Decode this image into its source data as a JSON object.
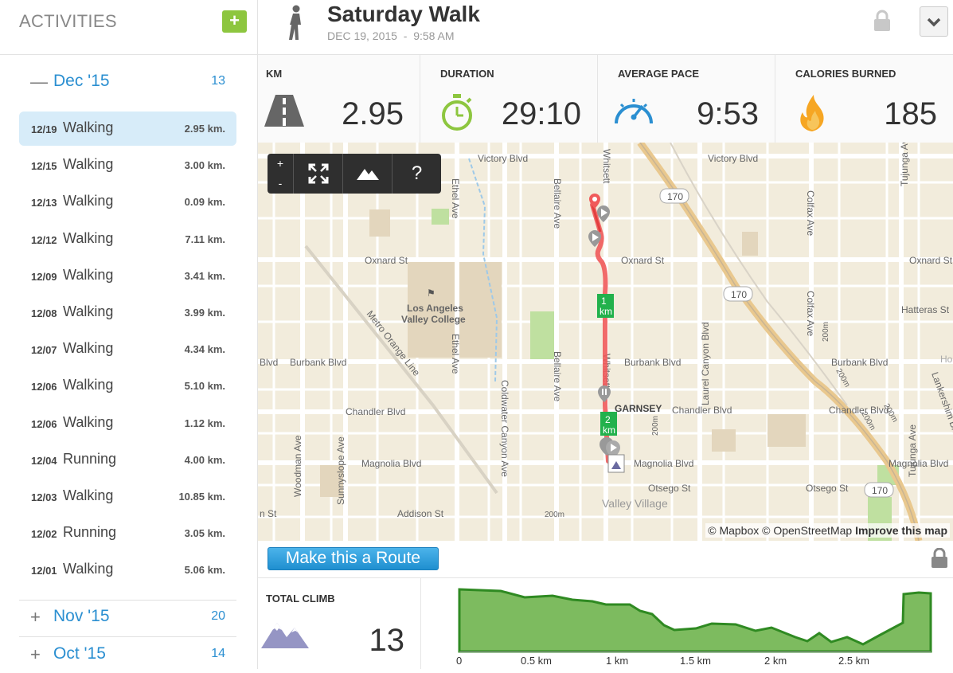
{
  "sidebar": {
    "title": "ACTIVITIES",
    "add_label": "+",
    "current_month": {
      "sign": "—",
      "name": "Dec '15",
      "count": "13"
    },
    "activities": [
      {
        "date": "12/19",
        "type": "Walking",
        "dist": "2.95 km."
      },
      {
        "date": "12/15",
        "type": "Walking",
        "dist": "3.00 km."
      },
      {
        "date": "12/13",
        "type": "Walking",
        "dist": "0.09 km."
      },
      {
        "date": "12/12",
        "type": "Walking",
        "dist": "7.11 km."
      },
      {
        "date": "12/09",
        "type": "Walking",
        "dist": "3.41 km."
      },
      {
        "date": "12/08",
        "type": "Walking",
        "dist": "3.99 km."
      },
      {
        "date": "12/07",
        "type": "Walking",
        "dist": "4.34 km."
      },
      {
        "date": "12/06",
        "type": "Walking",
        "dist": "5.10 km."
      },
      {
        "date": "12/06",
        "type": "Walking",
        "dist": "1.12 km."
      },
      {
        "date": "12/04",
        "type": "Running",
        "dist": "4.00 km."
      },
      {
        "date": "12/03",
        "type": "Walking",
        "dist": "10.85 km."
      },
      {
        "date": "12/02",
        "type": "Running",
        "dist": "3.05 km."
      },
      {
        "date": "12/01",
        "type": "Walking",
        "dist": "5.06 km."
      }
    ],
    "other_months": [
      {
        "sign": "+",
        "name": "Nov '15",
        "count": "20"
      },
      {
        "sign": "+",
        "name": "Oct '15",
        "count": "14"
      }
    ]
  },
  "header": {
    "title": "Saturday Walk",
    "date": "DEC 19, 2015",
    "separator": "-",
    "time": "9:58 AM",
    "activity_icon": "walking-person-icon"
  },
  "stats": {
    "km": {
      "label": "KM",
      "value": "2.95",
      "icon": "road-icon"
    },
    "duration": {
      "label": "DURATION",
      "value": "29:10",
      "icon": "stopwatch-icon"
    },
    "pace": {
      "label": "AVERAGE PACE",
      "value": "9:53",
      "icon": "speedometer-icon"
    },
    "calories": {
      "label": "CALORIES BURNED",
      "value": "185",
      "icon": "flame-icon"
    }
  },
  "map": {
    "zoom_in": "+",
    "zoom_out": "-",
    "help": "?",
    "attribution_text": "© Mapbox © OpenStreetMap ",
    "attribution_link": "Improve this map",
    "labels": {
      "victory1": "Victory Blvd",
      "victory2": "Victory Blvd",
      "oxnard1": "Oxnard St",
      "oxnard2": "Oxnard St",
      "oxnard3": "Oxnard St",
      "burbank0": "Blvd",
      "burbank1": "Burbank Blvd",
      "burbank2": "Burbank Blvd",
      "burbank3": "Burbank Blvd",
      "chandler1": "Chandler Blvd",
      "chandler2": "Chandler Blvd",
      "chandler3": "Chandler Blvd",
      "magnolia1": "Magnolia Blvd",
      "magnolia2": "Magnolia Blvd",
      "magnolia3": "Magnolia Blvd",
      "otsego1": "Otsego St",
      "otsego2": "Otsego St",
      "addison": "Addison St",
      "nst": "n St",
      "lavc1": "Los Angeles",
      "lavc2": "Valley College",
      "garnsey": "GARNSEY",
      "valley_village": "Valley Village",
      "hatteras": "Hatteras St",
      "ho": "Ho",
      "metro": "Metro Orange Line",
      "ethel1": "Ethel Ave",
      "ethel2": "Ethel Ave",
      "bellaire1": "Bellaire Ave",
      "bellaire2": "Bellaire Ave",
      "whitsett1": "Whitsett",
      "whitsett2": "Whitsett",
      "whitsett3": "Whitsett",
      "coldwater": "Coldwater Canyon Ave",
      "woodman": "Woodman Ave",
      "sunnyslope": "Sunnyslope Ave",
      "laurel": "Laurel Canyon Blvd",
      "colfax1": "Colfax Ave",
      "colfax2": "Colfax Ave",
      "tujunga1": "Tujunga Ave",
      "tujunga2": "Tujunga Ave",
      "lankershim": "Lankershim Blvd",
      "h170a": "170",
      "h170b": "170",
      "h170c": "170",
      "r200a": "200m",
      "r200b": "200m",
      "r200c": "200m",
      "r200d": "200m",
      "r200e": "200m",
      "r200f": "200m",
      "km1_a": "1",
      "km1_b": "km",
      "km2_a": "2",
      "km2_b": "km"
    }
  },
  "route": {
    "button_label": "Make this a Route"
  },
  "climb": {
    "label": "TOTAL CLIMB",
    "value": "13",
    "icon": "mountain-icon"
  },
  "elevation": {
    "x_ticks": [
      "0",
      "0.5 km",
      "1 km",
      "1.5 km",
      "2 km",
      "2.5 km"
    ],
    "fill_color": "#7dbb5f",
    "line_color": "#2f8a22"
  },
  "colors": {
    "accent": "#2b8fd1",
    "add_button": "#8dc63f",
    "route_line": "#f05a5a",
    "km_marker": "#22b14c"
  }
}
